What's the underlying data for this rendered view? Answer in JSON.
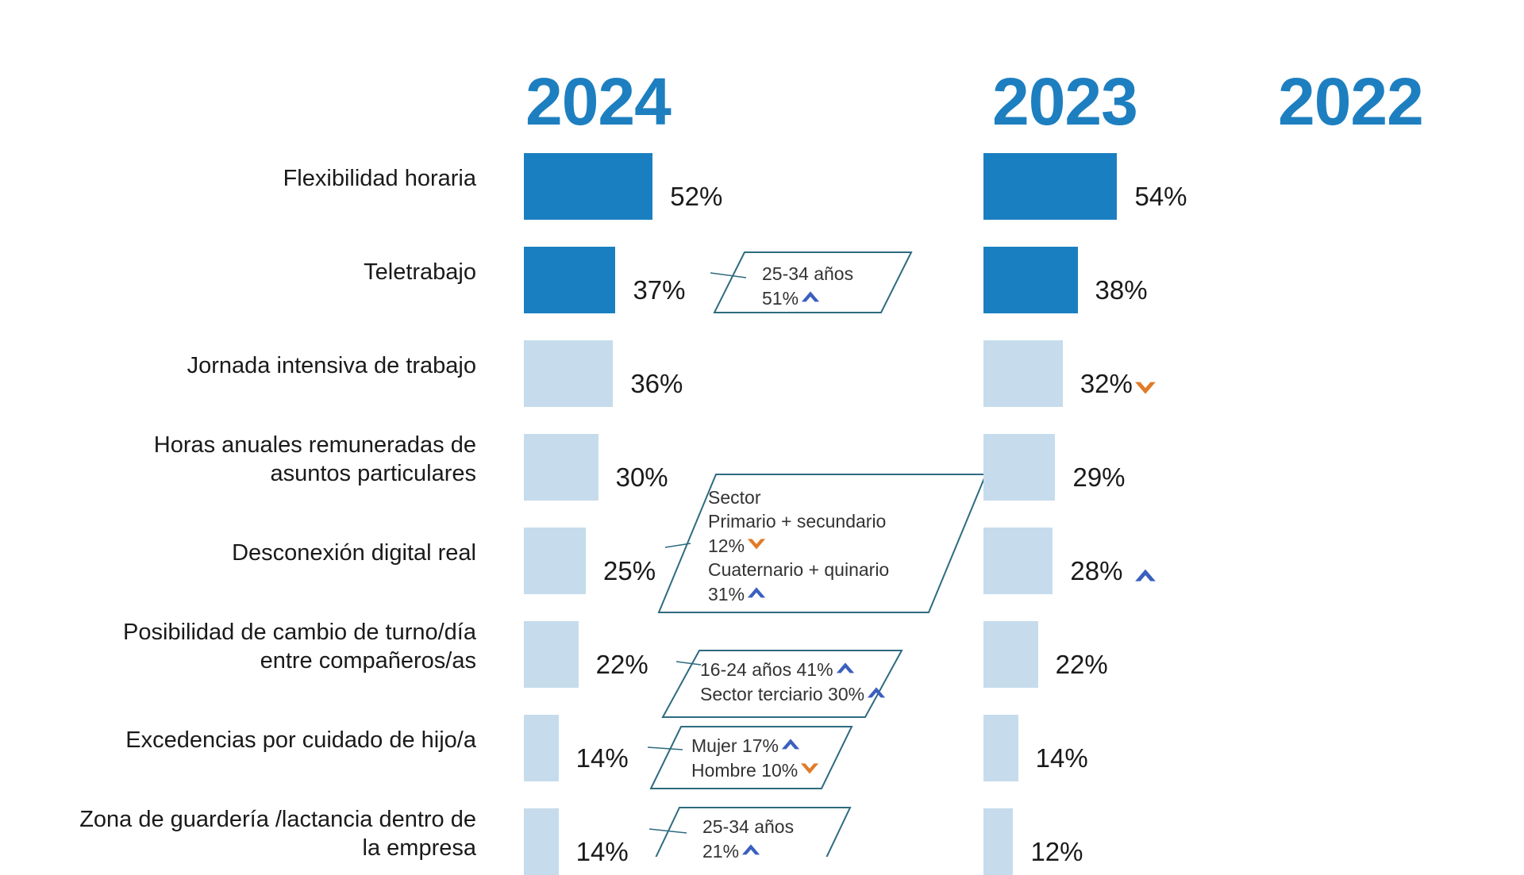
{
  "colors": {
    "year": "#1d7fc0",
    "dark_bar": "#1a7fc1",
    "light_bar": "#c6dcec",
    "callout_border": "#2e6b7f",
    "arrow_up": "#3b5fbf",
    "arrow_down": "#e07b28"
  },
  "years": [
    "2024",
    "2023",
    "2022"
  ],
  "chart_data": {
    "type": "bar",
    "orientation": "horizontal",
    "categories": [
      "Flexibilidad horaria",
      "Teletrabajo",
      "Jornada intensiva de trabajo",
      "Horas anuales remuneradas de asuntos particulares",
      "Desconexión digital real",
      "Posibilidad de cambio de turno/día entre compañeros/as",
      "Excedencias por cuidado de hijo/a",
      "Zona de guardería /lactancia dentro de la empresa"
    ],
    "series": [
      {
        "name": "2024",
        "values": [
          52,
          37,
          36,
          30,
          25,
          22,
          14,
          14
        ],
        "labels": [
          "52%",
          "37%",
          "36%",
          "30%",
          "25%",
          "22%",
          "14%",
          "14%"
        ]
      },
      {
        "name": "2023",
        "values": [
          54,
          38,
          32,
          29,
          28,
          22,
          14,
          12
        ],
        "labels": [
          "54%",
          "38%",
          "32%",
          "29%",
          "28%",
          "22%",
          "14%",
          "12%"
        ]
      }
    ],
    "highlighted_categories": [
      "Flexibilidad horaria",
      "Teletrabajo"
    ],
    "trend_markers_2023": [
      {
        "category": "Jornada intensiva de trabajo",
        "direction": "down"
      },
      {
        "category": "Desconexión digital real",
        "direction": "up"
      }
    ]
  },
  "category_label_lines": [
    [
      "Flexibilidad horaria"
    ],
    [
      "Teletrabajo"
    ],
    [
      "Jornada intensiva de trabajo"
    ],
    [
      "Horas anuales remuneradas de",
      "asuntos particulares"
    ],
    [
      "Desconexión digital real"
    ],
    [
      "Posibilidad de cambio de turno/día",
      "entre compañeros/as"
    ],
    [
      "Excedencias por cuidado de hijo/a"
    ],
    [
      "Zona de guardería /lactancia dentro de",
      "la empresa"
    ]
  ],
  "callouts": [
    {
      "category_index": 1,
      "lines": [
        {
          "text": "25-34 años"
        },
        {
          "text": "51%",
          "arrow": "up"
        }
      ]
    },
    {
      "category_index": 4,
      "lines": [
        {
          "text": "Sector"
        },
        {
          "text": "Primario + secundario"
        },
        {
          "text": "12%",
          "arrow": "down"
        },
        {
          "text": "Cuaternario + quinario"
        },
        {
          "text": "31%",
          "arrow": "up"
        }
      ]
    },
    {
      "category_index": 5,
      "lines": [
        {
          "text": "16-24 años 41%",
          "arrow": "up"
        },
        {
          "text": "Sector terciario 30%",
          "arrow": "up"
        }
      ]
    },
    {
      "category_index": 6,
      "lines": [
        {
          "text": "Mujer 17%",
          "arrow": "up"
        },
        {
          "text": "Hombre 10%",
          "arrow": "down"
        }
      ]
    },
    {
      "category_index": 7,
      "lines": [
        {
          "text": "25-34 años"
        },
        {
          "text": "21%",
          "arrow": "up"
        }
      ]
    }
  ]
}
